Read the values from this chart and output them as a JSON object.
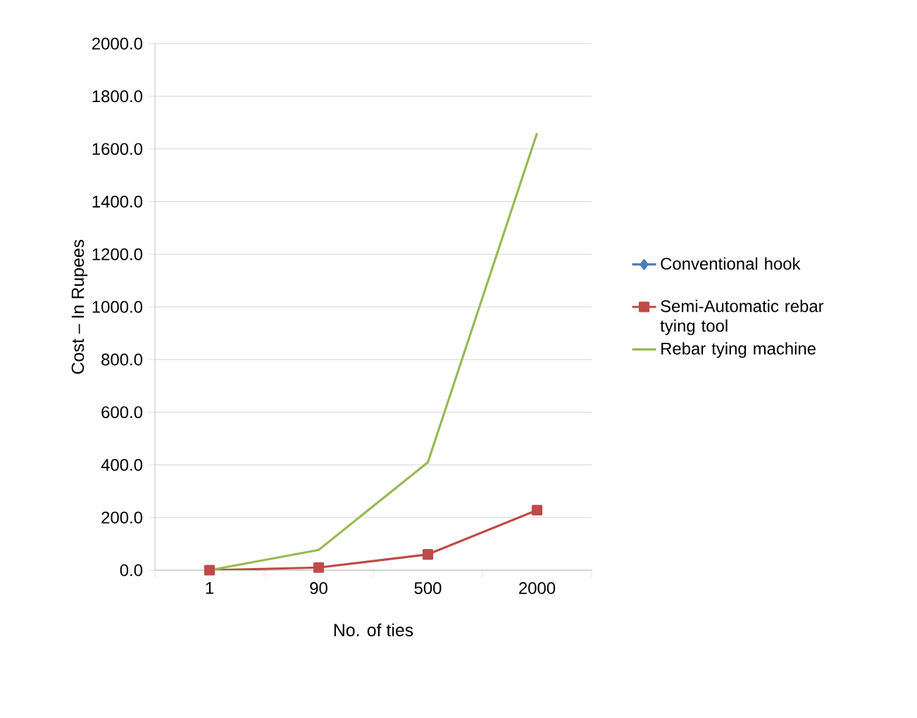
{
  "chart_data": {
    "type": "line",
    "xlabel": "No. of ties",
    "ylabel": "Cost – In Rupees",
    "categories": [
      "1",
      "90",
      "500",
      "2000"
    ],
    "series": [
      {
        "name": "Conventional hook",
        "color": "#4a7ebb",
        "marker": "diamond",
        "values": [
          null,
          null,
          null,
          null
        ]
      },
      {
        "name": "Semi-Automatic rebar tying tool",
        "color": "#be4b48",
        "marker": "square",
        "values": [
          0,
          10,
          60,
          228
        ]
      },
      {
        "name": "Rebar tying machine",
        "color": "#98b954",
        "marker": "none",
        "values": [
          0,
          77,
          410,
          1660
        ]
      }
    ],
    "ylim": [
      0,
      2000
    ],
    "yticks": [
      {
        "value": 0,
        "label": "0.0"
      },
      {
        "value": 200,
        "label": "200.0"
      },
      {
        "value": 400,
        "label": "400.0"
      },
      {
        "value": 600,
        "label": "600.0"
      },
      {
        "value": 800,
        "label": "800.0"
      },
      {
        "value": 1000,
        "label": "1000.0"
      },
      {
        "value": 1200,
        "label": "1200.0"
      },
      {
        "value": 1400,
        "label": "1400.0"
      },
      {
        "value": 1600,
        "label": "1600.0"
      },
      {
        "value": 1800,
        "label": "1800.0"
      },
      {
        "value": 2000,
        "label": "2000.0"
      }
    ],
    "grid": "y",
    "legend": "right"
  }
}
